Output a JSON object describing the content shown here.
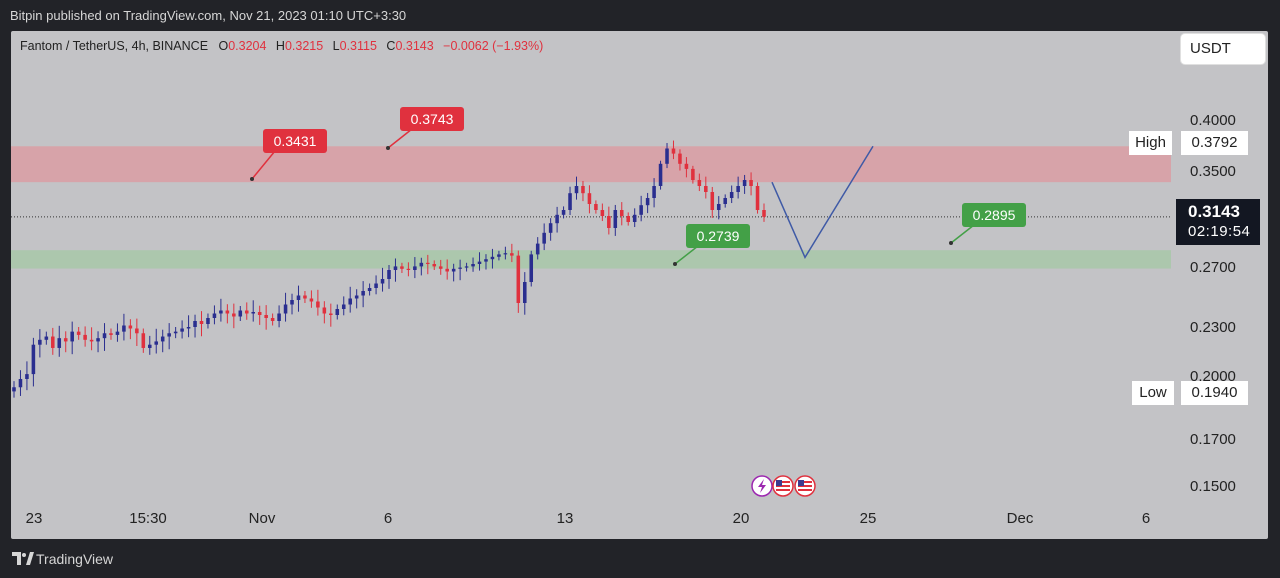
{
  "publisher": "Bitpin published on TradingView.com, Nov 21, 2023 01:10 UTC+3:30",
  "header": {
    "symbol": "Fantom / TetherUS, 4h, BINANCE",
    "open_label": "O",
    "open": "0.3204",
    "high_label": "H",
    "high": "0.3215",
    "low_label": "L",
    "low": "0.3115",
    "close_label": "C",
    "close": "0.3143",
    "change": "−0.0062 (−1.93%)"
  },
  "currency": "USDT",
  "price_scale": {
    "ticks": [
      "0.4000",
      "0.3500",
      "0.2700",
      "0.2300",
      "0.2000",
      "0.1700",
      "0.1500"
    ],
    "high_label": "High",
    "high_value": "0.3792",
    "low_label": "Low",
    "low_value": "0.1940",
    "last_price": "0.3143",
    "countdown": "02:19:54"
  },
  "time_scale": {
    "ticks": [
      "23",
      "15:30",
      "Nov",
      "6",
      "13",
      "20",
      "25",
      "Dec",
      "6"
    ]
  },
  "brand": "TradingView",
  "colors": {
    "up": "#2a2e8f",
    "down": "#e0313e",
    "resistance_zone": "#dd9aa0",
    "support_zone": "#a8c8a8",
    "projection": "#3f5aa6",
    "callout_red": "#e0313e",
    "callout_green": "#43a047"
  },
  "chart_data": {
    "type": "candlestick",
    "instrument": "Fantom / TetherUS",
    "interval": "4h",
    "exchange": "BINANCE",
    "y_ticks": [
      0.4,
      0.35,
      0.27,
      0.23,
      0.2,
      0.17,
      0.15
    ],
    "last_price": 0.3143,
    "visible_high": 0.3792,
    "visible_low": 0.194,
    "series_close": [
      0.196,
      0.2,
      0.203,
      0.221,
      0.224,
      0.226,
      0.219,
      0.225,
      0.223,
      0.229,
      0.227,
      0.224,
      0.223,
      0.225,
      0.228,
      0.227,
      0.229,
      0.233,
      0.231,
      0.228,
      0.219,
      0.221,
      0.223,
      0.226,
      0.228,
      0.229,
      0.231,
      0.232,
      0.236,
      0.234,
      0.238,
      0.241,
      0.243,
      0.241,
      0.239,
      0.243,
      0.241,
      0.242,
      0.24,
      0.238,
      0.236,
      0.241,
      0.247,
      0.25,
      0.253,
      0.251,
      0.249,
      0.245,
      0.241,
      0.24,
      0.244,
      0.247,
      0.251,
      0.253,
      0.256,
      0.258,
      0.261,
      0.264,
      0.27,
      0.273,
      0.271,
      0.27,
      0.273,
      0.276,
      0.275,
      0.273,
      0.271,
      0.269,
      0.271,
      0.272,
      0.273,
      0.275,
      0.277,
      0.279,
      0.281,
      0.283,
      0.284,
      0.282,
      0.248,
      0.262,
      0.283,
      0.292,
      0.301,
      0.309,
      0.316,
      0.32,
      0.334,
      0.34,
      0.334,
      0.325,
      0.32,
      0.315,
      0.305,
      0.32,
      0.315,
      0.31,
      0.316,
      0.324,
      0.33,
      0.34,
      0.36,
      0.375,
      0.37,
      0.36,
      0.355,
      0.345,
      0.34,
      0.335,
      0.32,
      0.325,
      0.33,
      0.335,
      0.34,
      0.345,
      0.34,
      0.32,
      0.3143
    ],
    "annotations": [
      {
        "label": "0.3431",
        "kind": "resistance"
      },
      {
        "label": "0.3743",
        "kind": "resistance"
      },
      {
        "label": "0.2739",
        "kind": "support"
      },
      {
        "label": "0.2895",
        "kind": "support"
      }
    ],
    "zones": [
      {
        "kind": "resistance",
        "from": 0.3432,
        "to": 0.3772
      },
      {
        "kind": "support",
        "from": 0.2712,
        "to": 0.2865
      }
    ],
    "projection": [
      0.3432,
      0.2805,
      0.3772
    ]
  }
}
